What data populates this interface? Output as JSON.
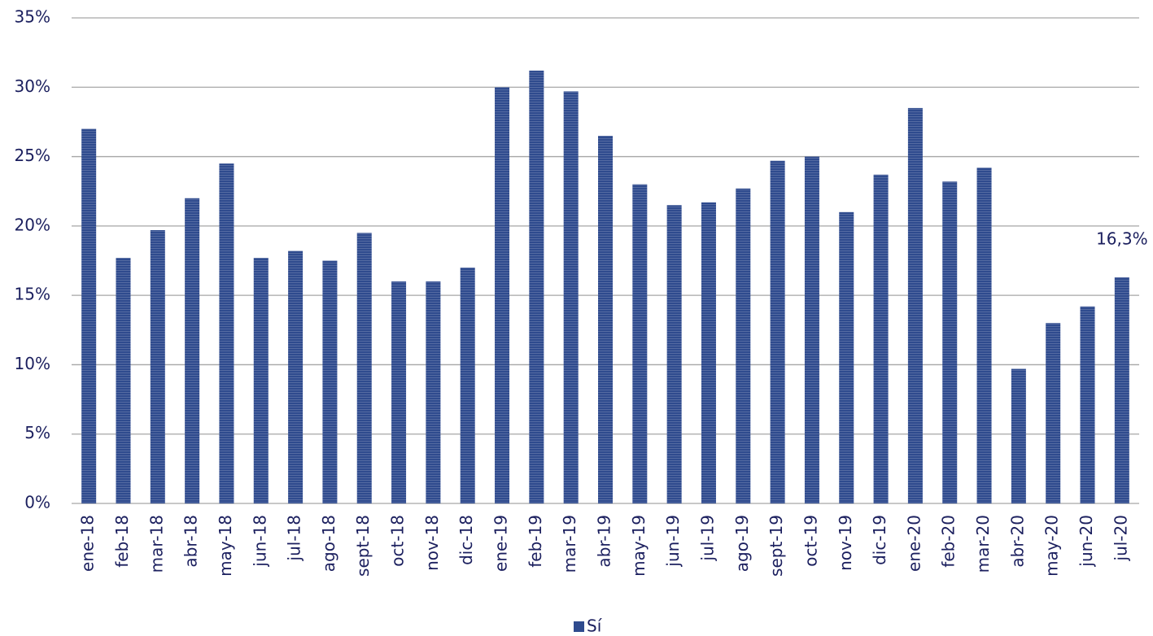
{
  "chart_data": {
    "type": "bar",
    "categories": [
      "ene-18",
      "feb-18",
      "mar-18",
      "abr-18",
      "may-18",
      "jun-18",
      "jul-18",
      "ago-18",
      "sept-18",
      "oct-18",
      "nov-18",
      "dic-18",
      "ene-19",
      "feb-19",
      "mar-19",
      "abr-19",
      "may-19",
      "jun-19",
      "jul-19",
      "ago-19",
      "sept-19",
      "oct-19",
      "nov-19",
      "dic-19",
      "ene-20",
      "feb-20",
      "mar-20",
      "abr-20",
      "may-20",
      "jun-20",
      "jul-20"
    ],
    "series": [
      {
        "name": "Sí",
        "color": "#2f4b8e",
        "values": [
          27,
          17.7,
          19.7,
          22,
          24.5,
          17.7,
          18.2,
          17.5,
          19.5,
          16,
          16,
          17,
          30,
          31.2,
          29.7,
          26.5,
          23,
          21.5,
          21.7,
          22.7,
          24.7,
          25,
          21,
          23.7,
          28.5,
          23.2,
          24.2,
          9.7,
          13,
          14.2,
          16.3
        ],
        "value_labels": [
          null,
          null,
          null,
          null,
          null,
          null,
          null,
          null,
          null,
          null,
          null,
          null,
          null,
          null,
          null,
          null,
          null,
          null,
          null,
          null,
          null,
          null,
          null,
          null,
          null,
          null,
          null,
          null,
          null,
          null,
          "16,3%"
        ]
      }
    ],
    "ylim": [
      0,
      35
    ],
    "yticks": [
      {
        "value": 0,
        "label": "0%"
      },
      {
        "value": 5,
        "label": "5%"
      },
      {
        "value": 10,
        "label": "10%"
      },
      {
        "value": 15,
        "label": "15%"
      },
      {
        "value": 20,
        "label": "20%"
      },
      {
        "value": 25,
        "label": "25%"
      },
      {
        "value": 30,
        "label": "30%"
      },
      {
        "value": 35,
        "label": "35%"
      }
    ],
    "grid": true,
    "legend": "bottom"
  }
}
